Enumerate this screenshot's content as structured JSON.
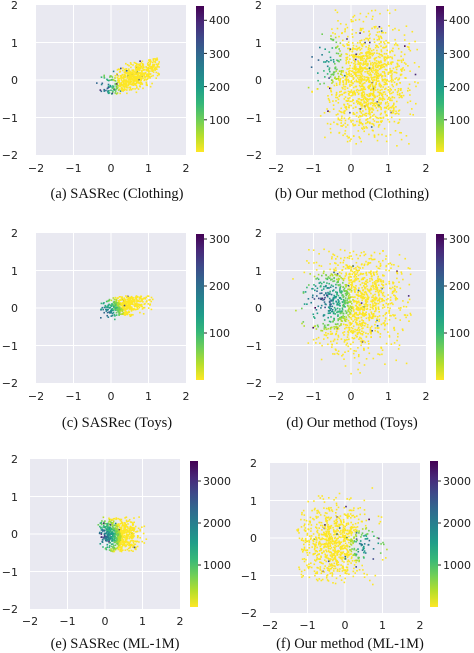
{
  "figure": {
    "colormap": "viridis",
    "plot_background": "#e9e9f1",
    "grid_color": "#ffffff",
    "colormap_stops": [
      "#440154",
      "#482878",
      "#3e4989",
      "#31688e",
      "#26828e",
      "#1f9e89",
      "#35b779",
      "#6ece58",
      "#b5de2b",
      "#fde725"
    ]
  },
  "chart_data": [
    {
      "type": "scatter",
      "caption": "(a) SASRec (Clothing)",
      "title": "",
      "xlabel": "",
      "ylabel": "",
      "xlim": [
        -2,
        2
      ],
      "ylim": [
        -2,
        2
      ],
      "xticks": [
        "−2",
        "−1",
        "0",
        "1",
        "2"
      ],
      "yticks": [
        "−2",
        "−1",
        "0",
        "1",
        "2"
      ],
      "grid": true,
      "colorbar": {
        "min": 0,
        "max": 440,
        "ticks": [
          100,
          200,
          300,
          400
        ],
        "tick_labels": [
          "100",
          "200",
          "300",
          "400"
        ]
      },
      "cluster": {
        "shape": "elongated band",
        "x_range": [
          -0.4,
          1.3
        ],
        "y_range": [
          -0.35,
          0.6
        ],
        "mean": [
          0.6,
          0.1
        ],
        "high_value_region": "left tip near (-0.3, -0.2)"
      }
    },
    {
      "type": "scatter",
      "caption": "(b) Our method (Clothing)",
      "title": "",
      "xlabel": "",
      "ylabel": "",
      "xlim": [
        -2,
        2
      ],
      "ylim": [
        -2,
        2
      ],
      "xticks": [
        "−2",
        "−1",
        "0",
        "1",
        "2"
      ],
      "yticks": [
        "−2",
        "−1",
        "0",
        "1",
        "2"
      ],
      "grid": true,
      "colorbar": {
        "min": 0,
        "max": 440,
        "ticks": [
          100,
          200,
          300,
          400
        ],
        "tick_labels": [
          "100",
          "200",
          "300",
          "400"
        ]
      },
      "cluster": {
        "shape": "broad cloud",
        "x_range": [
          -1.2,
          1.8
        ],
        "y_range": [
          -1.8,
          1.9
        ],
        "mean": [
          0.4,
          0.0
        ],
        "high_value_region": "sparse points near left edge"
      }
    },
    {
      "type": "scatter",
      "caption": "(c) SASRec (Toys)",
      "title": "",
      "xlabel": "",
      "ylabel": "",
      "xlim": [
        -2,
        2
      ],
      "ylim": [
        -2,
        2
      ],
      "xticks": [
        "−2",
        "−1",
        "0",
        "1",
        "2"
      ],
      "yticks": [
        "−2",
        "−1",
        "0",
        "1",
        "2"
      ],
      "grid": true,
      "colorbar": {
        "min": 0,
        "max": 310,
        "ticks": [
          100,
          200,
          300
        ],
        "tick_labels": [
          "100",
          "200",
          "300"
        ]
      },
      "cluster": {
        "shape": "small band",
        "x_range": [
          -0.3,
          1.1
        ],
        "y_range": [
          -0.3,
          0.35
        ],
        "mean": [
          0.35,
          0.1
        ],
        "high_value_region": "left tip near (-0.2, -0.15)"
      }
    },
    {
      "type": "scatter",
      "caption": "(d) Our method (Toys)",
      "title": "",
      "xlabel": "",
      "ylabel": "",
      "xlim": [
        -2,
        2
      ],
      "ylim": [
        -2,
        2
      ],
      "xticks": [
        "−2",
        "−1",
        "0",
        "1",
        "2"
      ],
      "yticks": [
        "−2",
        "−1",
        "0",
        "1",
        "2"
      ],
      "grid": true,
      "colorbar": {
        "min": 0,
        "max": 310,
        "ticks": [
          100,
          200,
          300
        ],
        "tick_labels": [
          "100",
          "200",
          "300"
        ]
      },
      "cluster": {
        "shape": "broad cloud",
        "x_range": [
          -1.6,
          1.6
        ],
        "y_range": [
          -1.8,
          1.6
        ],
        "mean": [
          0.1,
          0.2
        ],
        "high_value_region": "left side near x = -0.8"
      }
    },
    {
      "type": "scatter",
      "caption": "(e) SASRec (ML-1M)",
      "title": "",
      "xlabel": "",
      "ylabel": "",
      "xlim": [
        -2,
        2
      ],
      "ylim": [
        -2,
        2
      ],
      "xticks": [
        "−2",
        "−1",
        "0",
        "1",
        "2"
      ],
      "yticks": [
        "−2",
        "−1",
        "0",
        "1",
        "2"
      ],
      "grid": true,
      "colorbar": {
        "min": 0,
        "max": 3500,
        "ticks": [
          1000,
          2000,
          3000
        ],
        "tick_labels": [
          "1000",
          "2000",
          "3000"
        ]
      },
      "cluster": {
        "shape": "compact blob",
        "x_range": [
          -0.2,
          1.1
        ],
        "y_range": [
          -0.45,
          0.5
        ],
        "mean": [
          0.35,
          0.0
        ],
        "high_value_region": "left edge near x = -0.1"
      }
    },
    {
      "type": "scatter",
      "caption": "(f) Our method (ML-1M)",
      "title": "",
      "xlabel": "",
      "ylabel": "",
      "xlim": [
        -2,
        2
      ],
      "ylim": [
        -2,
        2
      ],
      "xticks": [
        "−2",
        "−1",
        "0",
        "1",
        "2"
      ],
      "yticks": [
        "−2",
        "−1",
        "0",
        "1",
        "2"
      ],
      "grid": true,
      "colorbar": {
        "min": 0,
        "max": 3500,
        "ticks": [
          1000,
          2000,
          3000
        ],
        "tick_labels": [
          "1000",
          "2000",
          "3000"
        ]
      },
      "cluster": {
        "shape": "wide blob",
        "x_range": [
          -1.3,
          1.1
        ],
        "y_range": [
          -1.3,
          1.4
        ],
        "mean": [
          -0.3,
          -0.1
        ],
        "high_value_region": "right side near x = 0.6"
      }
    }
  ]
}
